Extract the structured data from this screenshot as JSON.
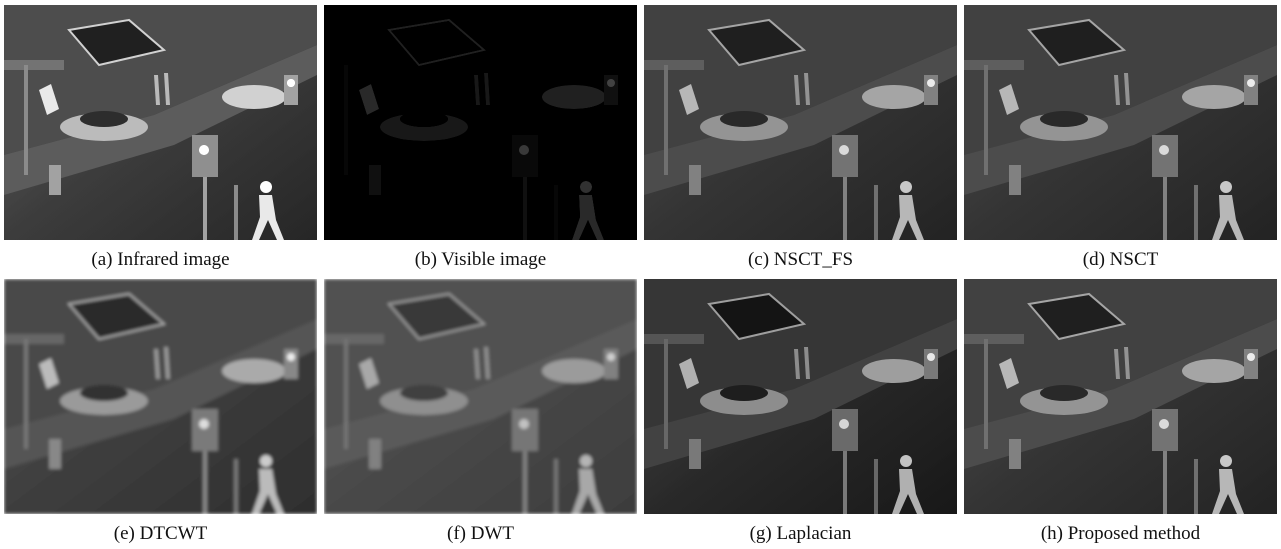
{
  "panels": [
    {
      "caption": "(a) Infrared image"
    },
    {
      "caption": "(b) Visible image"
    },
    {
      "caption": "(c) NSCT_FS"
    },
    {
      "caption": "(d) NSCT"
    },
    {
      "caption": "(e) DTCWT"
    },
    {
      "caption": "(f) DWT"
    },
    {
      "caption": "(g) Laplacian"
    },
    {
      "caption": "(h) Proposed method"
    }
  ]
}
